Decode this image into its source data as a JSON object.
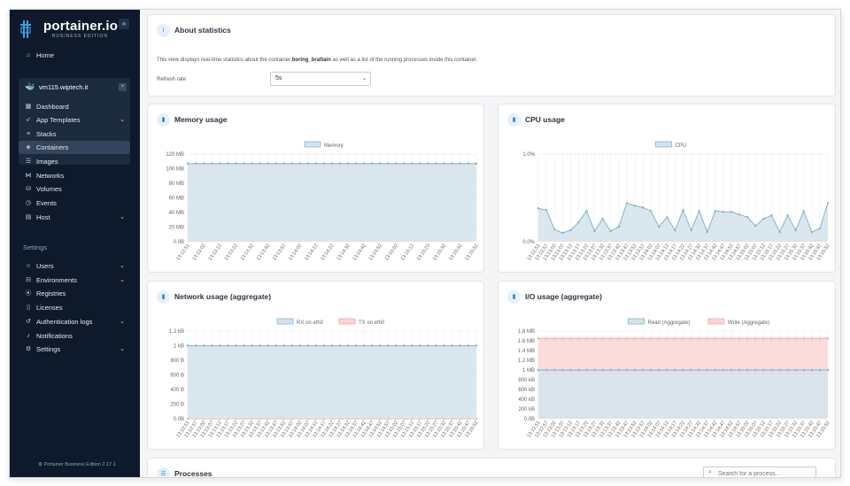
{
  "app": {
    "logo_text": "portainer.io",
    "logo_sub": "BUSINESS EDITION",
    "footer": "⚙ Portainer Business Edition 2.17.1"
  },
  "sidebar": {
    "home": "Home",
    "environment": {
      "name": "vm115.wiptech.it"
    },
    "env_items": [
      {
        "label": "Dashboard",
        "icon": "dashboard-icon"
      },
      {
        "label": "App Templates",
        "icon": "rocket-icon"
      },
      {
        "label": "Stacks",
        "icon": "layers-icon"
      },
      {
        "label": "Containers",
        "icon": "box-icon"
      },
      {
        "label": "Images",
        "icon": "list-icon"
      },
      {
        "label": "Networks",
        "icon": "network-icon"
      },
      {
        "label": "Volumes",
        "icon": "database-icon"
      },
      {
        "label": "Events",
        "icon": "clock-icon"
      },
      {
        "label": "Host",
        "icon": "server-icon"
      }
    ],
    "settings_label": "Settings",
    "settings_items": [
      {
        "label": "Users"
      },
      {
        "label": "Environments"
      },
      {
        "label": "Registries"
      },
      {
        "label": "Licenses"
      },
      {
        "label": "Authentication logs"
      },
      {
        "label": "Notifications"
      },
      {
        "label": "Settings"
      }
    ]
  },
  "about": {
    "title": "About statistics",
    "text_pre": "This view displays real-time statistics about the container",
    "container": "boring_brattain",
    "text_post": "as well as a list of the running processes inside this container.",
    "refresh_label": "Refresh rate",
    "refresh_value": "5s"
  },
  "cards": {
    "memory_title": "Memory usage",
    "cpu_title": "CPU usage",
    "network_title": "Network usage (aggregate)",
    "io_title": "I/O usage (aggregate)",
    "processes_title": "Processes"
  },
  "search": {
    "placeholder": "Search for a process..."
  },
  "colors": {
    "blue": "#86b2cf",
    "blue_fill": "#d4e3ec",
    "red": "#f4a7a7",
    "red_fill": "#fbd5d5"
  },
  "chart_data": [
    {
      "type": "area",
      "legend": [
        "Memory"
      ],
      "yticks": [
        "0.0B",
        "20 MB",
        "40 MB",
        "60 MB",
        "80 MB",
        "100 MB",
        "120 MB"
      ],
      "ylim": [
        0,
        120
      ],
      "x": [
        "13:12:51",
        "13:12:57",
        "13:13:02",
        "13:13:07",
        "13:13:12",
        "13:13:17",
        "13:13:22",
        "13:13:27",
        "13:13:32",
        "13:13:37",
        "13:13:42",
        "13:13:47",
        "13:13:52",
        "13:13:57",
        "13:14:02",
        "13:14:07",
        "13:14:12",
        "13:14:17",
        "13:14:22",
        "13:14:27",
        "13:14:32",
        "13:14:37",
        "13:14:42",
        "13:14:47",
        "13:14:52",
        "13:14:57",
        "13:15:02",
        "13:15:07",
        "13:15:12",
        "13:15:17",
        "13:15:22",
        "13:15:27",
        "13:15:32",
        "13:15:37",
        "13:15:42",
        "13:15:47",
        "13:15:52"
      ],
      "xticks": [
        "13:12:51",
        "13:13:02",
        "13:13:12",
        "13:13:22",
        "13:13:32",
        "13:13:42",
        "13:13:52",
        "13:14:02",
        "13:14:12",
        "13:14:22",
        "13:14:32",
        "13:14:42",
        "13:14:52",
        "13:15:02",
        "13:15:12",
        "13:15:23",
        "13:15:32",
        "13:15:42",
        "13:15:52"
      ],
      "series": [
        {
          "name": "Memory",
          "values": [
            107,
            107,
            107,
            107,
            107,
            107,
            107,
            107,
            107,
            107,
            107,
            107,
            107,
            107,
            107,
            107,
            107,
            107,
            107,
            107,
            107,
            107,
            107,
            107,
            107,
            107,
            107,
            107,
            107,
            107,
            107,
            107,
            107,
            107,
            107,
            107,
            107
          ]
        }
      ]
    },
    {
      "type": "area",
      "legend": [
        "CPU"
      ],
      "yticks": [
        "0.0%",
        "1.0%"
      ],
      "ylim": [
        0,
        1.0
      ],
      "x": [
        "13:12:51",
        "13:12:57",
        "13:13:02",
        "13:13:07",
        "13:13:12",
        "13:13:17",
        "13:13:22",
        "13:13:27",
        "13:13:32",
        "13:13:37",
        "13:13:42",
        "13:13:47",
        "13:13:52",
        "13:13:57",
        "13:14:02",
        "13:14:07",
        "13:14:12",
        "13:14:17",
        "13:14:22",
        "13:14:27",
        "13:14:32",
        "13:14:37",
        "13:14:42",
        "13:14:47",
        "13:14:52",
        "13:14:57",
        "13:15:02",
        "13:15:07",
        "13:15:12",
        "13:15:17",
        "13:15:22",
        "13:15:27",
        "13:15:32",
        "13:15:37",
        "13:15:42",
        "13:15:47",
        "13:15:52"
      ],
      "xticks": [
        "13:12:51",
        "13:12:57",
        "13:13:02",
        "13:13:07",
        "13:13:12",
        "13:13:17",
        "13:13:22",
        "13:13:27",
        "13:13:32",
        "13:13:37",
        "13:13:42",
        "13:13:47",
        "13:13:52",
        "13:13:57",
        "13:14:02",
        "13:14:07",
        "13:14:12",
        "13:14:17",
        "13:14:22",
        "13:14:27",
        "13:14:32",
        "13:14:37",
        "13:14:42",
        "13:14:47",
        "13:14:52",
        "13:14:57",
        "13:15:02",
        "13:15:07",
        "13:15:12",
        "13:15:17",
        "13:15:22",
        "13:15:27",
        "13:15:32",
        "13:15:37",
        "13:15:42",
        "13:15:47",
        "13:15:52"
      ],
      "series": [
        {
          "name": "CPU",
          "values": [
            0.38,
            0.36,
            0.14,
            0.1,
            0.13,
            0.22,
            0.35,
            0.12,
            0.26,
            0.12,
            0.17,
            0.44,
            0.41,
            0.39,
            0.35,
            0.17,
            0.28,
            0.13,
            0.36,
            0.13,
            0.35,
            0.11,
            0.35,
            0.34,
            0.34,
            0.31,
            0.28,
            0.18,
            0.26,
            0.3,
            0.11,
            0.3,
            0.13,
            0.35,
            0.11,
            0.15,
            0.44
          ]
        }
      ]
    },
    {
      "type": "area",
      "legend": [
        "RX on eth0",
        "TX on eth0"
      ],
      "yticks": [
        "0.0B",
        "200 B",
        "400 B",
        "600 B",
        "800 B",
        "1 kB",
        "1.2 kB"
      ],
      "ylim": [
        0,
        1.2
      ],
      "x": [
        "13:12:51",
        "13:12:57",
        "13:13:02",
        "13:13:07",
        "13:13:12",
        "13:13:17",
        "13:13:22",
        "13:13:27",
        "13:13:32",
        "13:13:37",
        "13:13:42",
        "13:13:47",
        "13:13:52",
        "13:13:57",
        "13:14:02",
        "13:14:07",
        "13:14:12",
        "13:14:17",
        "13:14:22",
        "13:14:27",
        "13:14:32",
        "13:14:37",
        "13:14:42",
        "13:14:47",
        "13:14:52",
        "13:14:57",
        "13:15:02",
        "13:15:07",
        "13:15:12",
        "13:15:17",
        "13:15:22",
        "13:15:27",
        "13:15:32",
        "13:15:37",
        "13:15:42",
        "13:15:47",
        "13:15:52"
      ],
      "xticks": [
        "13:12:51",
        "13:12:57",
        "13:13:02",
        "13:13:07",
        "13:13:12",
        "13:13:17",
        "13:13:22",
        "13:13:27",
        "13:13:32",
        "13:13:37",
        "13:13:42",
        "13:13:47",
        "13:13:52",
        "13:13:57",
        "13:14:02",
        "13:14:07",
        "13:14:12",
        "13:14:17",
        "13:14:22",
        "13:14:27",
        "13:14:32",
        "13:14:37",
        "13:14:42",
        "13:14:47",
        "13:14:52",
        "13:14:57",
        "13:15:02",
        "13:15:07",
        "13:15:12",
        "13:15:17",
        "13:15:22",
        "13:15:27",
        "13:15:32",
        "13:15:37",
        "13:15:42",
        "13:15:47",
        "13:15:52"
      ],
      "series": [
        {
          "name": "RX on eth0",
          "values": [
            1,
            1,
            1,
            1,
            1,
            1,
            1,
            1,
            1,
            1,
            1,
            1,
            1,
            1,
            1,
            1,
            1,
            1,
            1,
            1,
            1,
            1,
            1,
            1,
            1,
            1,
            1,
            1,
            1,
            1,
            1,
            1,
            1,
            1,
            1,
            1,
            1
          ]
        },
        {
          "name": "TX on eth0",
          "values": [
            0,
            0,
            0,
            0,
            0,
            0,
            0,
            0,
            0,
            0,
            0,
            0,
            0,
            0,
            0,
            0,
            0,
            0,
            0,
            0,
            0,
            0,
            0,
            0,
            0,
            0,
            0,
            0,
            0,
            0,
            0,
            0,
            0,
            0,
            0,
            0,
            0
          ]
        }
      ]
    },
    {
      "type": "area",
      "legend": [
        "Read (Aggregate)",
        "Write (Aggregate)"
      ],
      "yticks": [
        "0.0B",
        "200 kB",
        "400 kB",
        "600 kB",
        "800 kB",
        "1 MB",
        "1.2 MB",
        "1.4 MB",
        "1.6 MB",
        "1.8 MB"
      ],
      "ylim": [
        0,
        1.8
      ],
      "x": [
        "13:12:51",
        "13:12:57",
        "13:13:02",
        "13:13:07",
        "13:13:12",
        "13:13:17",
        "13:13:22",
        "13:13:27",
        "13:13:32",
        "13:13:37",
        "13:13:42",
        "13:13:47",
        "13:13:52",
        "13:13:57",
        "13:14:02",
        "13:14:07",
        "13:14:12",
        "13:14:17",
        "13:14:22",
        "13:14:27",
        "13:14:32",
        "13:14:37",
        "13:14:42",
        "13:14:47",
        "13:14:52",
        "13:14:57",
        "13:15:02",
        "13:15:07",
        "13:15:12",
        "13:15:17",
        "13:15:22",
        "13:15:27",
        "13:15:32",
        "13:15:37",
        "13:15:42",
        "13:15:47",
        "13:15:52"
      ],
      "xticks": [
        "13:12:51",
        "13:12:57",
        "13:13:02",
        "13:13:07",
        "13:13:12",
        "13:13:17",
        "13:13:22",
        "13:13:27",
        "13:13:32",
        "13:13:37",
        "13:13:42",
        "13:13:47",
        "13:13:52",
        "13:13:57",
        "13:14:02",
        "13:14:07",
        "13:14:12",
        "13:14:17",
        "13:14:22",
        "13:14:27",
        "13:14:32",
        "13:14:37",
        "13:14:42",
        "13:14:47",
        "13:14:52",
        "13:14:57",
        "13:15:02",
        "13:15:07",
        "13:15:12",
        "13:15:17",
        "13:15:22",
        "13:15:27",
        "13:15:32",
        "13:15:37",
        "13:15:42",
        "13:15:47",
        "13:15:52"
      ],
      "series": [
        {
          "name": "Read (Aggregate)",
          "values": [
            1,
            1,
            1,
            1,
            1,
            1,
            1,
            1,
            1,
            1,
            1,
            1,
            1,
            1,
            1,
            1,
            1,
            1,
            1,
            1,
            1,
            1,
            1,
            1,
            1,
            1,
            1,
            1,
            1,
            1,
            1,
            1,
            1,
            1,
            1,
            1,
            1
          ]
        },
        {
          "name": "Write (Aggregate)",
          "values": [
            1.65,
            1.65,
            1.65,
            1.65,
            1.65,
            1.65,
            1.65,
            1.65,
            1.65,
            1.65,
            1.65,
            1.65,
            1.65,
            1.65,
            1.65,
            1.65,
            1.65,
            1.65,
            1.65,
            1.65,
            1.65,
            1.65,
            1.65,
            1.65,
            1.65,
            1.65,
            1.65,
            1.65,
            1.65,
            1.65,
            1.65,
            1.65,
            1.65,
            1.65,
            1.65,
            1.65,
            1.65
          ]
        }
      ]
    }
  ]
}
